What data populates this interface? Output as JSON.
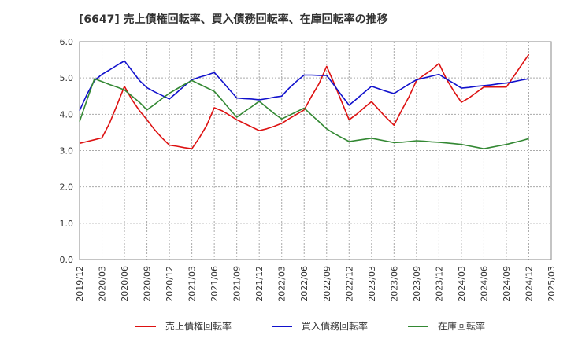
{
  "chart_data": {
    "type": "line",
    "title": "[6647]  売上債権回転率、買入債務回転率、在庫回転率の推移",
    "xlabel": "",
    "ylabel": "",
    "ylim": [
      0,
      6
    ],
    "yticks": [
      "0.0",
      "1.0",
      "2.0",
      "3.0",
      "4.0",
      "5.0",
      "6.0"
    ],
    "grid": true,
    "legend_position": "bottom",
    "x_tick_labels": [
      "2019/12",
      "2020/03",
      "2020/06",
      "2020/09",
      "2020/12",
      "2021/03",
      "2021/06",
      "2021/09",
      "2021/12",
      "2022/03",
      "2022/06",
      "2022/09",
      "2022/12",
      "2023/03",
      "2023/06",
      "2023/09",
      "2023/12",
      "2024/03",
      "2024/06",
      "2024/09",
      "2024/12",
      "2025/03"
    ],
    "x": [
      "2019/12",
      "2020/01",
      "2020/02",
      "2020/03",
      "2020/04",
      "2020/05",
      "2020/06",
      "2020/07",
      "2020/08",
      "2020/09",
      "2020/10",
      "2020/11",
      "2020/12",
      "2021/01",
      "2021/02",
      "2021/03",
      "2021/04",
      "2021/05",
      "2021/06",
      "2021/07",
      "2021/08",
      "2021/09",
      "2021/10",
      "2021/11",
      "2021/12",
      "2022/01",
      "2022/02",
      "2022/03",
      "2022/04",
      "2022/05",
      "2022/06",
      "2022/07",
      "2022/08",
      "2022/09",
      "2022/10",
      "2022/11",
      "2022/12",
      "2023/01",
      "2023/02",
      "2023/03",
      "2023/04",
      "2023/05",
      "2023/06",
      "2023/07",
      "2023/08",
      "2023/09",
      "2023/10",
      "2023/11",
      "2023/12",
      "2024/01",
      "2024/02",
      "2024/03",
      "2024/04",
      "2024/05",
      "2024/06",
      "2024/07",
      "2024/08",
      "2024/09",
      "2024/10",
      "2024/11",
      "2024/12"
    ],
    "series": [
      {
        "name": "売上債権回転率",
        "color": "#dd1111",
        "values": [
          3.2,
          3.25,
          3.3,
          3.35,
          3.75,
          4.25,
          4.77,
          4.4,
          4.1,
          3.85,
          3.58,
          3.35,
          3.15,
          3.12,
          3.08,
          3.05,
          3.35,
          3.7,
          4.18,
          4.1,
          3.98,
          3.85,
          3.75,
          3.65,
          3.55,
          3.6,
          3.67,
          3.75,
          3.88,
          4.0,
          4.12,
          4.5,
          4.85,
          5.32,
          4.85,
          4.35,
          3.85,
          4.0,
          4.18,
          4.35,
          4.12,
          3.9,
          3.7,
          4.1,
          4.48,
          4.93,
          5.08,
          5.22,
          5.4,
          4.97,
          4.63,
          4.33,
          4.45,
          4.6,
          4.75,
          4.75,
          4.75,
          4.75,
          5.05,
          5.35,
          5.65
        ]
      },
      {
        "name": "買入債務回転率",
        "color": "#1111cc",
        "values": [
          4.1,
          4.55,
          4.93,
          5.1,
          5.22,
          5.35,
          5.47,
          5.2,
          4.93,
          4.73,
          4.62,
          4.52,
          4.42,
          4.6,
          4.78,
          4.95,
          5.02,
          5.08,
          5.15,
          4.92,
          4.68,
          4.45,
          4.43,
          4.42,
          4.4,
          4.43,
          4.47,
          4.5,
          4.72,
          4.91,
          5.08,
          5.08,
          5.07,
          5.07,
          4.8,
          4.52,
          4.25,
          4.42,
          4.6,
          4.77,
          4.7,
          4.63,
          4.57,
          4.7,
          4.83,
          4.95,
          5.0,
          5.05,
          5.1,
          4.97,
          4.85,
          4.72,
          4.74,
          4.77,
          4.79,
          4.81,
          4.84,
          4.86,
          4.9,
          4.94,
          4.98
        ]
      },
      {
        "name": "在庫回転率",
        "color": "#338833",
        "values": [
          3.8,
          4.4,
          4.98,
          4.9,
          4.82,
          4.75,
          4.67,
          4.5,
          4.33,
          4.12,
          4.27,
          4.43,
          4.58,
          4.7,
          4.82,
          4.93,
          4.83,
          4.73,
          4.63,
          4.4,
          4.15,
          3.92,
          4.07,
          4.21,
          4.36,
          4.19,
          4.02,
          3.87,
          3.97,
          4.07,
          4.17,
          3.98,
          3.79,
          3.6,
          3.47,
          3.36,
          3.25,
          3.28,
          3.31,
          3.34,
          3.3,
          3.26,
          3.22,
          3.23,
          3.25,
          3.27,
          3.26,
          3.24,
          3.23,
          3.21,
          3.19,
          3.17,
          3.13,
          3.09,
          3.05,
          3.09,
          3.13,
          3.17,
          3.22,
          3.27,
          3.33
        ]
      }
    ]
  }
}
